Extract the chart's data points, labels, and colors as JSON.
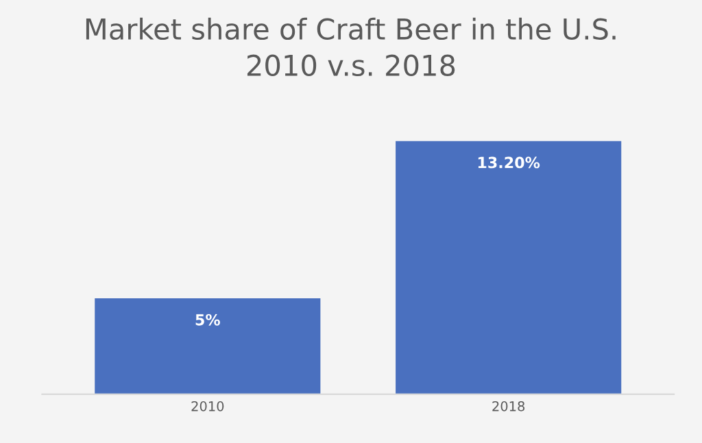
{
  "chart_data": {
    "type": "bar",
    "title": "Market share of Craft Beer in the U.S.\n2010 v.s. 2018",
    "categories": [
      "2010",
      "2018"
    ],
    "values": [
      5,
      13.2
    ],
    "value_labels": [
      "5%",
      "13.20%"
    ],
    "color": "#4a70bf",
    "tick_labels": "x",
    "grid": false,
    "legend": false
  }
}
